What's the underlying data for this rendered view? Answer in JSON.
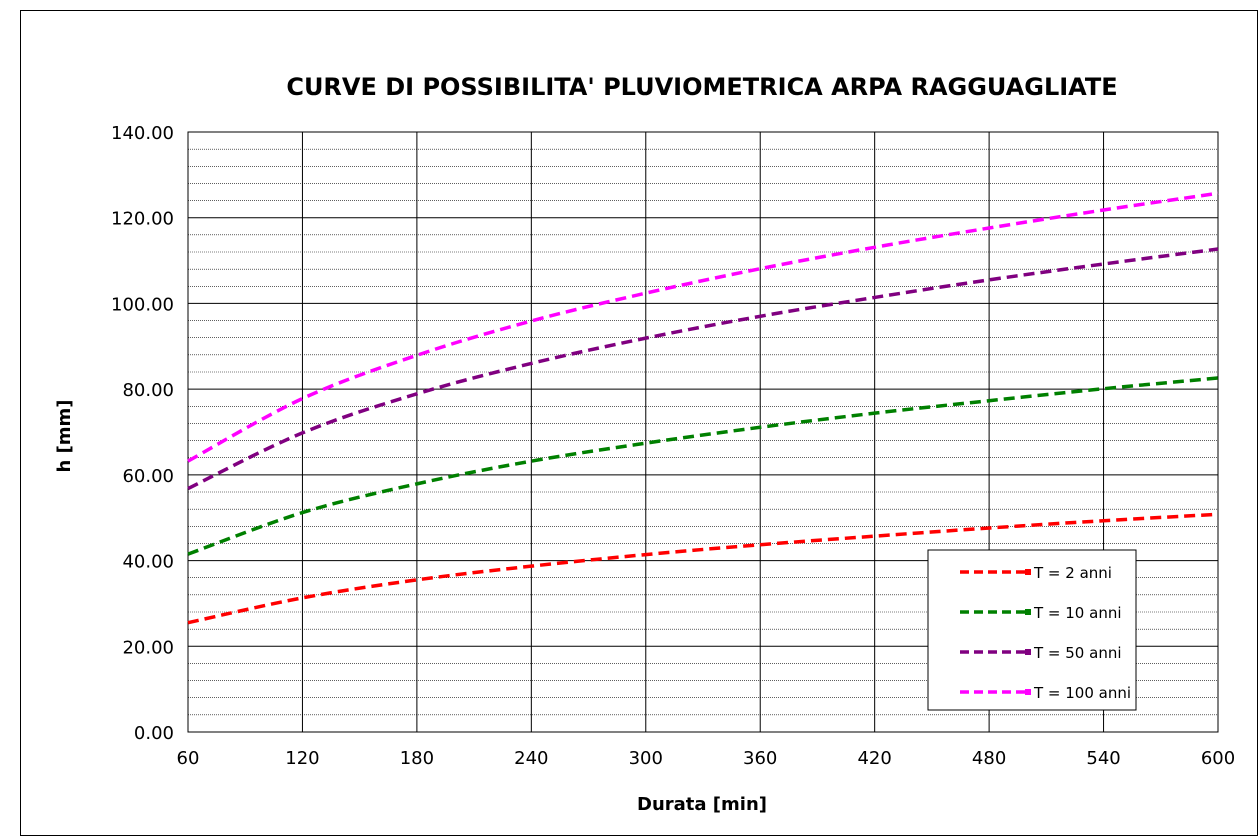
{
  "chart_data": {
    "type": "line",
    "title": "CURVE DI POSSIBILITA' PLUVIOMETRICA ARPA RAGGUAGLIATE",
    "xlabel": "Durata [min]",
    "ylabel": "h [mm]",
    "xlim": [
      60,
      600
    ],
    "ylim": [
      0,
      140
    ],
    "x_ticks": [
      "60",
      "120",
      "180",
      "240",
      "300",
      "360",
      "420",
      "480",
      "540",
      "600"
    ],
    "y_ticks": [
      "0.00",
      "20.00",
      "40.00",
      "60.00",
      "80.00",
      "100.00",
      "120.00",
      "140.00"
    ],
    "grid": true,
    "legend_position": "bottom-right",
    "x": [
      60,
      120,
      180,
      240,
      300,
      360,
      420,
      480,
      540,
      600
    ],
    "series": [
      {
        "name": "T = 2 anni",
        "color": "#ff0000",
        "values": [
          25.5,
          31.3,
          35.5,
          38.7,
          41.4,
          43.7,
          45.7,
          47.6,
          49.3,
          50.8
        ]
      },
      {
        "name": "T = 10 anni",
        "color": "#008000",
        "values": [
          41.5,
          51.2,
          57.9,
          63.2,
          67.4,
          71.1,
          74.4,
          77.3,
          80.1,
          82.6
        ]
      },
      {
        "name": "T = 50 anni",
        "color": "#800080",
        "values": [
          56.8,
          69.8,
          78.9,
          86.0,
          91.9,
          97.0,
          101.4,
          105.5,
          109.2,
          112.7
        ]
      },
      {
        "name": "T = 100 anni",
        "color": "#ff00ff",
        "values": [
          63.2,
          77.8,
          87.9,
          95.9,
          102.4,
          108.1,
          113.1,
          117.6,
          121.8,
          125.7
        ]
      }
    ]
  }
}
